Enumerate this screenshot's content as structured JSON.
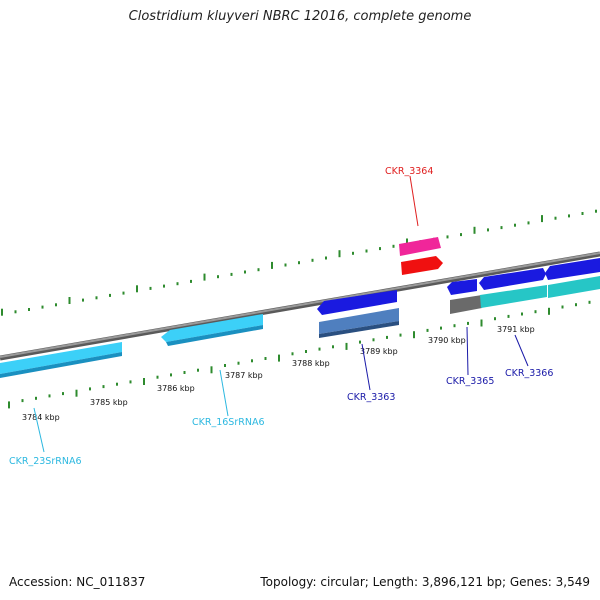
{
  "title": "Clostridium kluyveri NBRC 12016, complete genome",
  "footer": {
    "accession": "Accession: NC_011837",
    "summary": "Topology: circular; Length: 3,896,121 bp; Genes: 3,549"
  },
  "colors": {
    "backbone": "#8a8a8a",
    "tick": "#2e8b2e",
    "rrna": "#33c8f0",
    "cds_fwd": "#1a1ae0",
    "cds_rev_steel": "#4f7fbf",
    "cds_teal": "#26c6c6",
    "cds_gray": "#6a6a6a",
    "pink": "#f0269a",
    "red": "#f01010",
    "label_blue": "#1a1aa8",
    "label_cyan": "#2cb8e0",
    "label_red": "#e02020"
  },
  "scale_labels": [
    "3784 kbp",
    "3785 kbp",
    "3786 kbp",
    "3787 kbp",
    "3788 kbp",
    "3789 kbp",
    "3790 kbp",
    "3791 kbp"
  ],
  "gene_labels": {
    "ckr_3364": "CKR_3364",
    "ckr_3363": "CKR_3363",
    "ckr_3365": "CKR_3365",
    "ckr_3366": "CKR_3366",
    "ckr_16srrna6": "CKR_16SrRNA6",
    "ckr_23srrna6": "CKR_23SrRNA6"
  }
}
